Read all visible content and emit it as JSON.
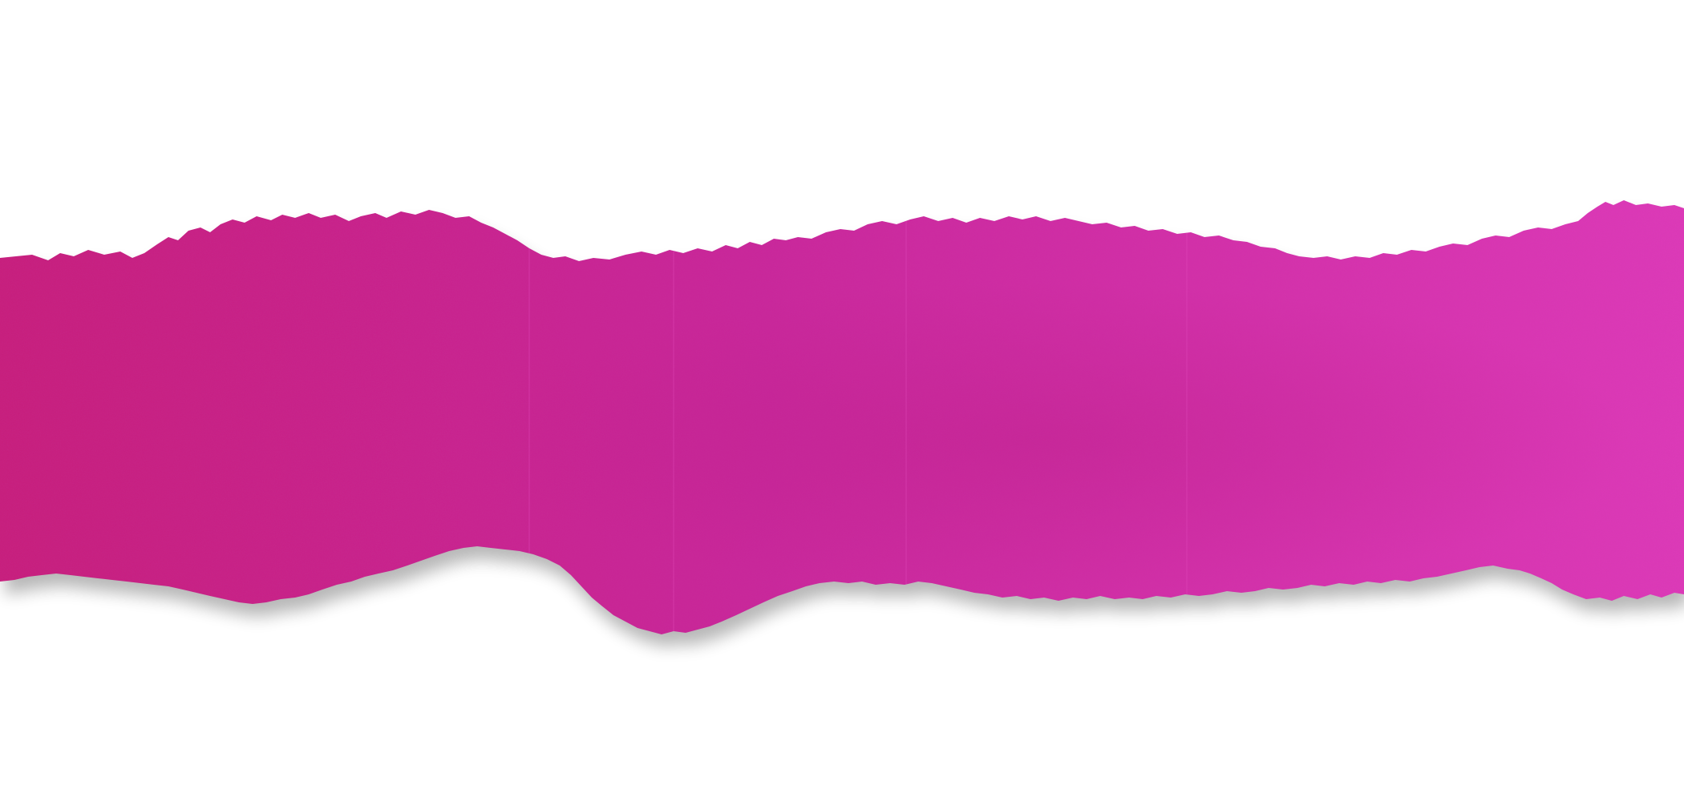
{
  "scene": {
    "subject": "torn-paper-strip",
    "background_color": "#ffffff",
    "colors": {
      "paper_left": "#c71c7a",
      "paper_mid": "#c9259a",
      "paper_right": "#de39ba",
      "paper_shade": "#b81a83",
      "shadow": "#000000"
    }
  }
}
